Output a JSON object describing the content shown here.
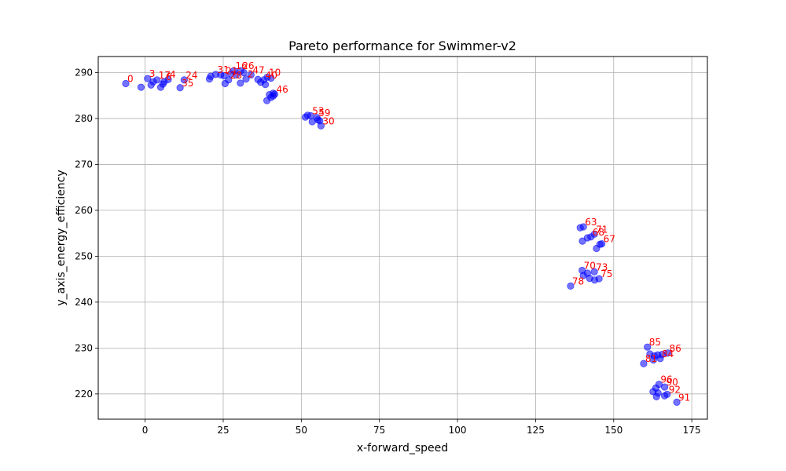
{
  "chart_data": {
    "type": "scatter",
    "title": "Pareto performance for Swimmer-v2",
    "xlabel": "x-forward_speed",
    "ylabel": "y_axis_energy_efficiency",
    "xlim": [
      -15,
      180
    ],
    "ylim": [
      214.5,
      293.5
    ],
    "xticks": [
      0,
      25,
      50,
      75,
      100,
      125,
      150,
      175
    ],
    "yticks": [
      220,
      230,
      240,
      250,
      260,
      270,
      280,
      290
    ],
    "grid": true,
    "point_color": "#0000ff",
    "label_color": "#ff0000",
    "points": [
      {
        "label": "0",
        "x": -6.2,
        "y": 287.6
      },
      {
        "label": "",
        "x": -1.3,
        "y": 286.8
      },
      {
        "label": "3",
        "x": 0.8,
        "y": 288.7
      },
      {
        "label": "",
        "x": 1.9,
        "y": 287.3
      },
      {
        "label": "",
        "x": 2.6,
        "y": 288.0
      },
      {
        "label": "17",
        "x": 3.8,
        "y": 288.4
      },
      {
        "label": "",
        "x": 5.0,
        "y": 286.8
      },
      {
        "label": "",
        "x": 5.7,
        "y": 287.5
      },
      {
        "label": "6",
        "x": 6.1,
        "y": 288.0
      },
      {
        "label": "4",
        "x": 7.4,
        "y": 288.5
      },
      {
        "label": "35",
        "x": 11.2,
        "y": 286.7
      },
      {
        "label": "24",
        "x": 12.5,
        "y": 288.4
      },
      {
        "label": "",
        "x": 20.6,
        "y": 288.6
      },
      {
        "label": "",
        "x": 21.0,
        "y": 289.2
      },
      {
        "label": "31",
        "x": 22.6,
        "y": 289.6
      },
      {
        "label": "",
        "x": 24.2,
        "y": 289.5
      },
      {
        "label": "21",
        "x": 25.3,
        "y": 289.3
      },
      {
        "label": "",
        "x": 25.6,
        "y": 287.6
      },
      {
        "label": "28",
        "x": 26.7,
        "y": 288.4
      },
      {
        "label": "",
        "x": 27.5,
        "y": 289.7
      },
      {
        "label": "16",
        "x": 28.4,
        "y": 290.4
      },
      {
        "label": "",
        "x": 29.2,
        "y": 289.5
      },
      {
        "label": "26",
        "x": 30.6,
        "y": 290.4
      },
      {
        "label": "",
        "x": 30.5,
        "y": 287.7
      },
      {
        "label": "",
        "x": 31.6,
        "y": 290.0
      },
      {
        "label": "2",
        "x": 32.3,
        "y": 288.6
      },
      {
        "label": "47",
        "x": 33.9,
        "y": 289.5
      },
      {
        "label": "",
        "x": 36.1,
        "y": 288.5
      },
      {
        "label": "",
        "x": 37.0,
        "y": 287.9
      },
      {
        "label": "40",
        "x": 38.0,
        "y": 288.4
      },
      {
        "label": "10",
        "x": 39.1,
        "y": 289.0
      },
      {
        "label": "",
        "x": 38.5,
        "y": 287.4
      },
      {
        "label": "",
        "x": 40.3,
        "y": 288.8
      },
      {
        "label": "",
        "x": 39.0,
        "y": 283.9
      },
      {
        "label": "",
        "x": 39.8,
        "y": 285.2
      },
      {
        "label": "",
        "x": 40.3,
        "y": 284.6
      },
      {
        "label": "",
        "x": 41.0,
        "y": 284.9
      },
      {
        "label": "46",
        "x": 41.5,
        "y": 285.3
      },
      {
        "label": "",
        "x": 41.0,
        "y": 285.5
      },
      {
        "label": "",
        "x": 51.3,
        "y": 280.3
      },
      {
        "label": "",
        "x": 52.0,
        "y": 280.7
      },
      {
        "label": "53",
        "x": 53.0,
        "y": 280.6
      },
      {
        "label": "59",
        "x": 55.0,
        "y": 280.2
      },
      {
        "label": "",
        "x": 53.5,
        "y": 279.3
      },
      {
        "label": "",
        "x": 55.3,
        "y": 279.7
      },
      {
        "label": "",
        "x": 55.9,
        "y": 279.5
      },
      {
        "label": "30",
        "x": 56.3,
        "y": 278.4
      },
      {
        "label": "",
        "x": 139.3,
        "y": 256.2
      },
      {
        "label": "63",
        "x": 140.3,
        "y": 256.4
      },
      {
        "label": "",
        "x": 140.0,
        "y": 253.3
      },
      {
        "label": "",
        "x": 141.6,
        "y": 254.0
      },
      {
        "label": "68",
        "x": 142.7,
        "y": 254.2
      },
      {
        "label": "71",
        "x": 143.8,
        "y": 254.8
      },
      {
        "label": "",
        "x": 144.5,
        "y": 251.7
      },
      {
        "label": "",
        "x": 145.6,
        "y": 252.6
      },
      {
        "label": "67",
        "x": 146.2,
        "y": 252.7
      },
      {
        "label": "70",
        "x": 139.9,
        "y": 246.9
      },
      {
        "label": "",
        "x": 140.3,
        "y": 245.8
      },
      {
        "label": "",
        "x": 141.6,
        "y": 246.3
      },
      {
        "label": "73",
        "x": 143.8,
        "y": 246.6
      },
      {
        "label": "",
        "x": 142.3,
        "y": 245.2
      },
      {
        "label": "",
        "x": 143.9,
        "y": 244.8
      },
      {
        "label": "75",
        "x": 145.3,
        "y": 245.1
      },
      {
        "label": "78",
        "x": 136.2,
        "y": 243.5
      },
      {
        "label": "85",
        "x": 160.8,
        "y": 230.2
      },
      {
        "label": "",
        "x": 161.6,
        "y": 228.7
      },
      {
        "label": "",
        "x": 163.0,
        "y": 228.3
      },
      {
        "label": "",
        "x": 164.1,
        "y": 228.5
      },
      {
        "label": "",
        "x": 165.5,
        "y": 228.6
      },
      {
        "label": "86",
        "x": 167.3,
        "y": 228.9
      },
      {
        "label": "81",
        "x": 159.6,
        "y": 226.6
      },
      {
        "label": "",
        "x": 162.7,
        "y": 227.4
      },
      {
        "label": "84",
        "x": 164.9,
        "y": 227.7
      },
      {
        "label": "96",
        "x": 164.5,
        "y": 222.1
      },
      {
        "label": "90",
        "x": 166.3,
        "y": 221.5
      },
      {
        "label": "",
        "x": 163.5,
        "y": 221.3
      },
      {
        "label": "",
        "x": 162.6,
        "y": 220.5
      },
      {
        "label": "",
        "x": 164.2,
        "y": 220.2
      },
      {
        "label": "92",
        "x": 167.1,
        "y": 219.9
      },
      {
        "label": "",
        "x": 163.7,
        "y": 219.4
      },
      {
        "label": "",
        "x": 166.3,
        "y": 219.6
      },
      {
        "label": "91",
        "x": 170.2,
        "y": 218.2
      }
    ]
  }
}
